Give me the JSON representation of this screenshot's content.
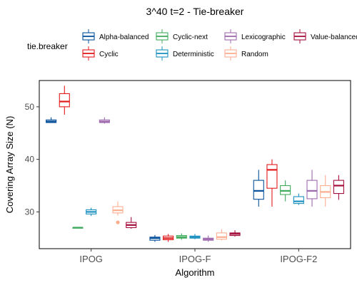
{
  "chart_data": {
    "type": "boxplot",
    "title": "3^40 t=2 - Tie-breaker",
    "xlabel": "Algorithm",
    "ylabel": "Covering Array Size (N)",
    "ylim": [
      23,
      55
    ],
    "yticks": [
      30,
      40,
      50
    ],
    "categories": [
      "IPOG",
      "IPOG-F",
      "IPOG-F2"
    ],
    "legend": {
      "title": "tie.breaker",
      "position": "top",
      "entries": [
        "Alpha-balanced",
        "Cyclic",
        "Cyclic-next",
        "Deterministic",
        "Lexicographic",
        "Random",
        "Value-balanced"
      ]
    },
    "series": [
      {
        "name": "Alpha-balanced",
        "color": "#08519c",
        "boxes": [
          {
            "min": 47,
            "q1": 47,
            "median": 47.2,
            "q3": 47.5,
            "max": 48,
            "outliers": []
          },
          {
            "min": 24.3,
            "q1": 24.6,
            "median": 25,
            "q3": 25.2,
            "max": 25.6,
            "outliers": []
          },
          {
            "min": 31,
            "q1": 32.4,
            "median": 34,
            "q3": 36,
            "max": 38,
            "outliers": []
          }
        ]
      },
      {
        "name": "Cyclic",
        "color": "#e31a1c",
        "boxes": [
          {
            "min": 48.5,
            "q1": 50,
            "median": 51,
            "q3": 52.5,
            "max": 54,
            "outliers": []
          },
          {
            "min": 24.3,
            "q1": 24.7,
            "median": 25,
            "q3": 25.4,
            "max": 25.8,
            "outliers": []
          },
          {
            "min": 31,
            "q1": 34.5,
            "median": 38,
            "q3": 39,
            "max": 40,
            "outliers": []
          }
        ]
      },
      {
        "name": "Cyclic-next",
        "color": "#41ab5d",
        "boxes": [
          {
            "min": 27,
            "q1": 27,
            "median": 27,
            "q3": 27,
            "max": 27,
            "outliers": []
          },
          {
            "min": 24.7,
            "q1": 25,
            "median": 25.2,
            "q3": 25.5,
            "max": 25.9,
            "outliers": []
          },
          {
            "min": 32,
            "q1": 33.3,
            "median": 34,
            "q3": 35,
            "max": 36,
            "outliers": []
          }
        ]
      },
      {
        "name": "Deterministic",
        "color": "#1d91c0",
        "boxes": [
          {
            "min": 29.2,
            "q1": 29.6,
            "median": 30,
            "q3": 30.4,
            "max": 30.8,
            "outliers": []
          },
          {
            "min": 24.8,
            "q1": 25,
            "median": 25.2,
            "q3": 25.4,
            "max": 25.8,
            "outliers": []
          },
          {
            "min": 31.3,
            "q1": 31.6,
            "median": 32,
            "q3": 32.9,
            "max": 33.5,
            "outliers": []
          }
        ]
      },
      {
        "name": "Lexicographic",
        "color": "#9e6aad",
        "boxes": [
          {
            "min": 46.8,
            "q1": 47,
            "median": 47.2,
            "q3": 47.5,
            "max": 48,
            "outliers": []
          },
          {
            "min": 24.3,
            "q1": 24.6,
            "median": 24.8,
            "q3": 25,
            "max": 25.5,
            "outliers": []
          },
          {
            "min": 31,
            "q1": 32.5,
            "median": 34,
            "q3": 36,
            "max": 38,
            "outliers": []
          }
        ]
      },
      {
        "name": "Random",
        "color": "#fcae91",
        "boxes": [
          {
            "min": 29.3,
            "q1": 29.8,
            "median": 30.3,
            "q3": 31,
            "max": 32,
            "outliers": [
              28
            ]
          },
          {
            "min": 24.6,
            "q1": 24.8,
            "median": 25.2,
            "q3": 26,
            "max": 26.7,
            "outliers": []
          },
          {
            "min": 31,
            "q1": 32.7,
            "median": 33.8,
            "q3": 35,
            "max": 37,
            "outliers": []
          }
        ]
      },
      {
        "name": "Value-balanced",
        "color": "#a50f3d",
        "boxes": [
          {
            "min": 26.8,
            "q1": 27,
            "median": 27.5,
            "q3": 28,
            "max": 29,
            "outliers": []
          },
          {
            "min": 25.3,
            "q1": 25.5,
            "median": 25.8,
            "q3": 26,
            "max": 26.5,
            "outliers": []
          },
          {
            "min": 32.3,
            "q1": 33.5,
            "median": 35,
            "q3": 36,
            "max": 37,
            "outliers": []
          }
        ]
      }
    ]
  }
}
